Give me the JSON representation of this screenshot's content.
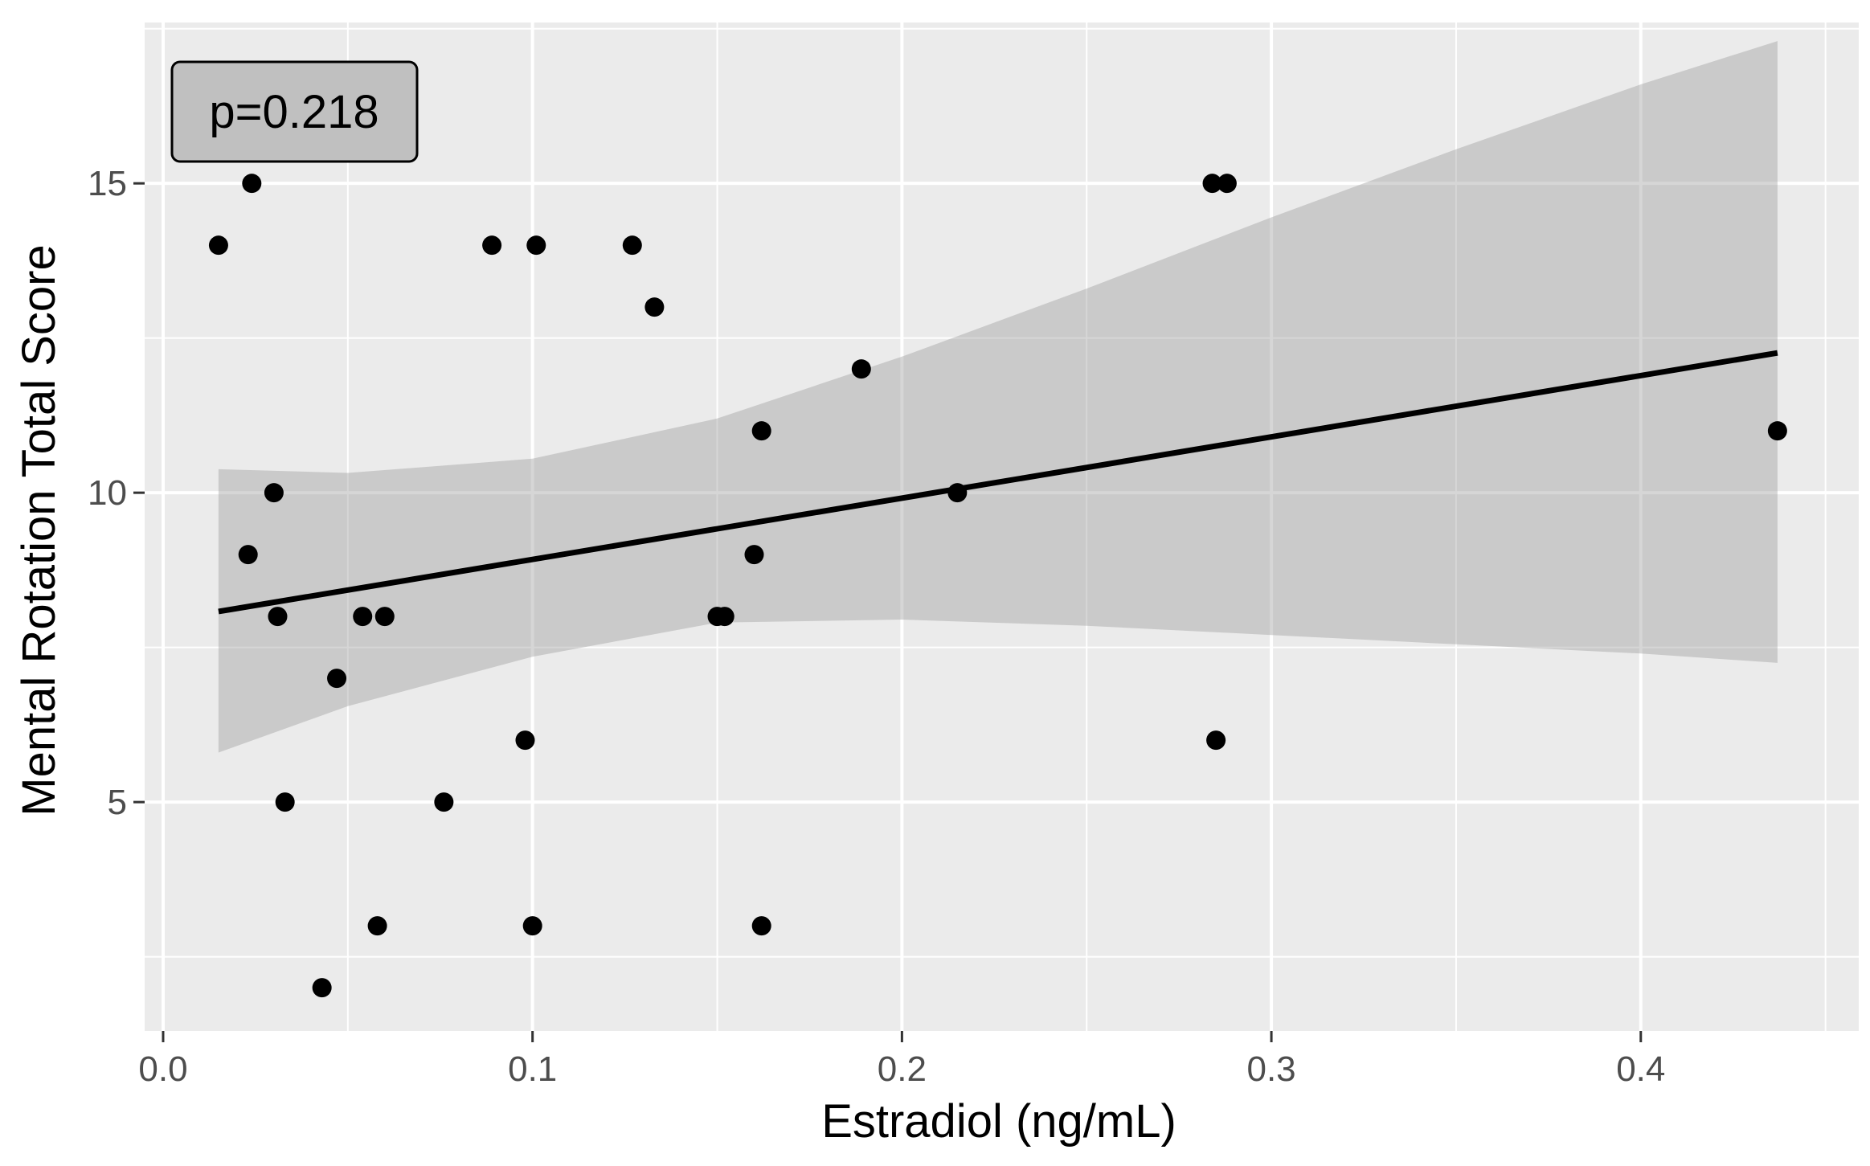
{
  "chart_data": {
    "type": "scatter",
    "title": "",
    "xlabel": "Estradiol (ng/mL)",
    "ylabel": "Mental Rotation Total Score",
    "xlim": [
      -0.005,
      0.459
    ],
    "ylim": [
      1.3,
      17.6
    ],
    "x_ticks": [
      0.0,
      0.1,
      0.2,
      0.3,
      0.4
    ],
    "x_tick_labels": [
      "0.0",
      "0.1",
      "0.2",
      "0.3",
      "0.4"
    ],
    "y_ticks": [
      5,
      10,
      15
    ],
    "y_tick_labels": [
      "5",
      "10",
      "15"
    ],
    "x_minor_ticks": [
      0.05,
      0.15,
      0.25,
      0.35,
      0.45
    ],
    "y_minor_ticks": [
      2.5,
      7.5,
      12.5,
      17.5
    ],
    "grid": true,
    "annotation": "p=0.218",
    "colors": {
      "panel": "#ebebeb",
      "grid": "#ffffff",
      "points": "#000000",
      "ribbon": "#999999",
      "fit_line": "#000000",
      "annotation_fill": "#c0c0c0"
    },
    "points": [
      {
        "x": 0.015,
        "y": 14
      },
      {
        "x": 0.024,
        "y": 15
      },
      {
        "x": 0.023,
        "y": 9
      },
      {
        "x": 0.03,
        "y": 10
      },
      {
        "x": 0.031,
        "y": 8
      },
      {
        "x": 0.033,
        "y": 5
      },
      {
        "x": 0.043,
        "y": 2
      },
      {
        "x": 0.047,
        "y": 7
      },
      {
        "x": 0.054,
        "y": 8
      },
      {
        "x": 0.058,
        "y": 3
      },
      {
        "x": 0.06,
        "y": 8
      },
      {
        "x": 0.076,
        "y": 5
      },
      {
        "x": 0.089,
        "y": 14
      },
      {
        "x": 0.098,
        "y": 6
      },
      {
        "x": 0.1,
        "y": 3
      },
      {
        "x": 0.101,
        "y": 14
      },
      {
        "x": 0.127,
        "y": 14
      },
      {
        "x": 0.133,
        "y": 13
      },
      {
        "x": 0.15,
        "y": 8
      },
      {
        "x": 0.152,
        "y": 8
      },
      {
        "x": 0.16,
        "y": 9
      },
      {
        "x": 0.162,
        "y": 11
      },
      {
        "x": 0.162,
        "y": 3
      },
      {
        "x": 0.189,
        "y": 12
      },
      {
        "x": 0.215,
        "y": 10
      },
      {
        "x": 0.284,
        "y": 15
      },
      {
        "x": 0.285,
        "y": 6
      },
      {
        "x": 0.288,
        "y": 15
      },
      {
        "x": 0.437,
        "y": 11
      }
    ],
    "regression": {
      "x": [
        0.015,
        0.437
      ],
      "y": [
        8.08,
        12.26
      ]
    },
    "confidence_band": {
      "x": [
        0.015,
        0.05,
        0.1,
        0.15,
        0.2,
        0.25,
        0.3,
        0.35,
        0.4,
        0.437
      ],
      "upper": [
        10.38,
        10.32,
        10.55,
        11.2,
        12.2,
        13.3,
        14.45,
        15.55,
        16.6,
        17.3
      ],
      "lower": [
        5.8,
        6.55,
        7.35,
        7.9,
        7.95,
        7.85,
        7.7,
        7.55,
        7.4,
        7.25
      ]
    }
  }
}
